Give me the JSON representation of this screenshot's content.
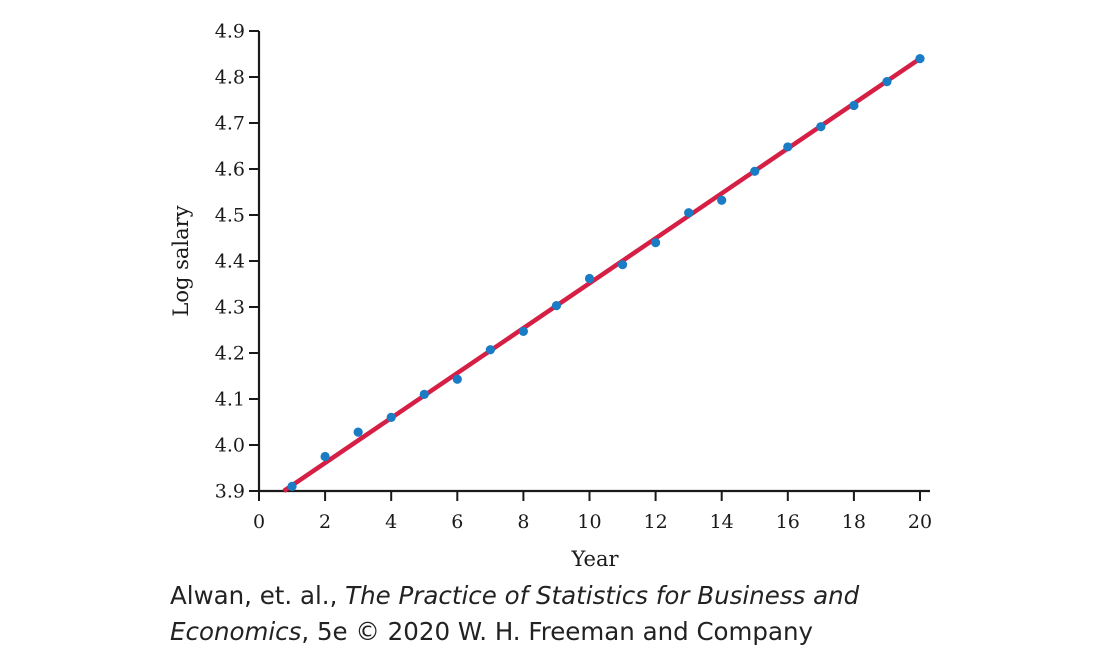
{
  "chart_data": {
    "type": "scatter",
    "xlabel": "Year",
    "ylabel": "Log salary",
    "xlim": [
      0,
      20
    ],
    "ylim": [
      3.9,
      4.9
    ],
    "xticks": [
      "0",
      "2",
      "4",
      "6",
      "8",
      "10",
      "12",
      "14",
      "16",
      "18",
      "20"
    ],
    "yticks": [
      "3.9",
      "4.0",
      "4.1",
      "4.2",
      "4.3",
      "4.4",
      "4.5",
      "4.6",
      "4.7",
      "4.8",
      "4.9"
    ],
    "grid": false,
    "legend": "none",
    "points": {
      "x": [
        1,
        2,
        3,
        4,
        5,
        6,
        7,
        8,
        9,
        10,
        11,
        12,
        13,
        14,
        15,
        16,
        17,
        18,
        19,
        20
      ],
      "y": [
        3.91,
        3.975,
        4.028,
        4.06,
        4.11,
        4.143,
        4.207,
        4.247,
        4.303,
        4.362,
        4.392,
        4.44,
        4.505,
        4.532,
        4.595,
        4.648,
        4.692,
        4.738,
        4.79,
        4.84
      ]
    },
    "fit_line": {
      "x": [
        0.75,
        20
      ],
      "y": [
        3.9,
        4.84
      ]
    },
    "colors": {
      "points": "#1a7cc4",
      "fit_line": "#d61f45",
      "axes": "#1a1a1a"
    }
  },
  "caption": {
    "line1_prefix": "Alwan, et. al., ",
    "line1_italic": "The Practice of Statistics for Business and",
    "line2_italic": "Economics",
    "line2_suffix": ", 5e © 2020 W. H. Freeman and Company"
  }
}
